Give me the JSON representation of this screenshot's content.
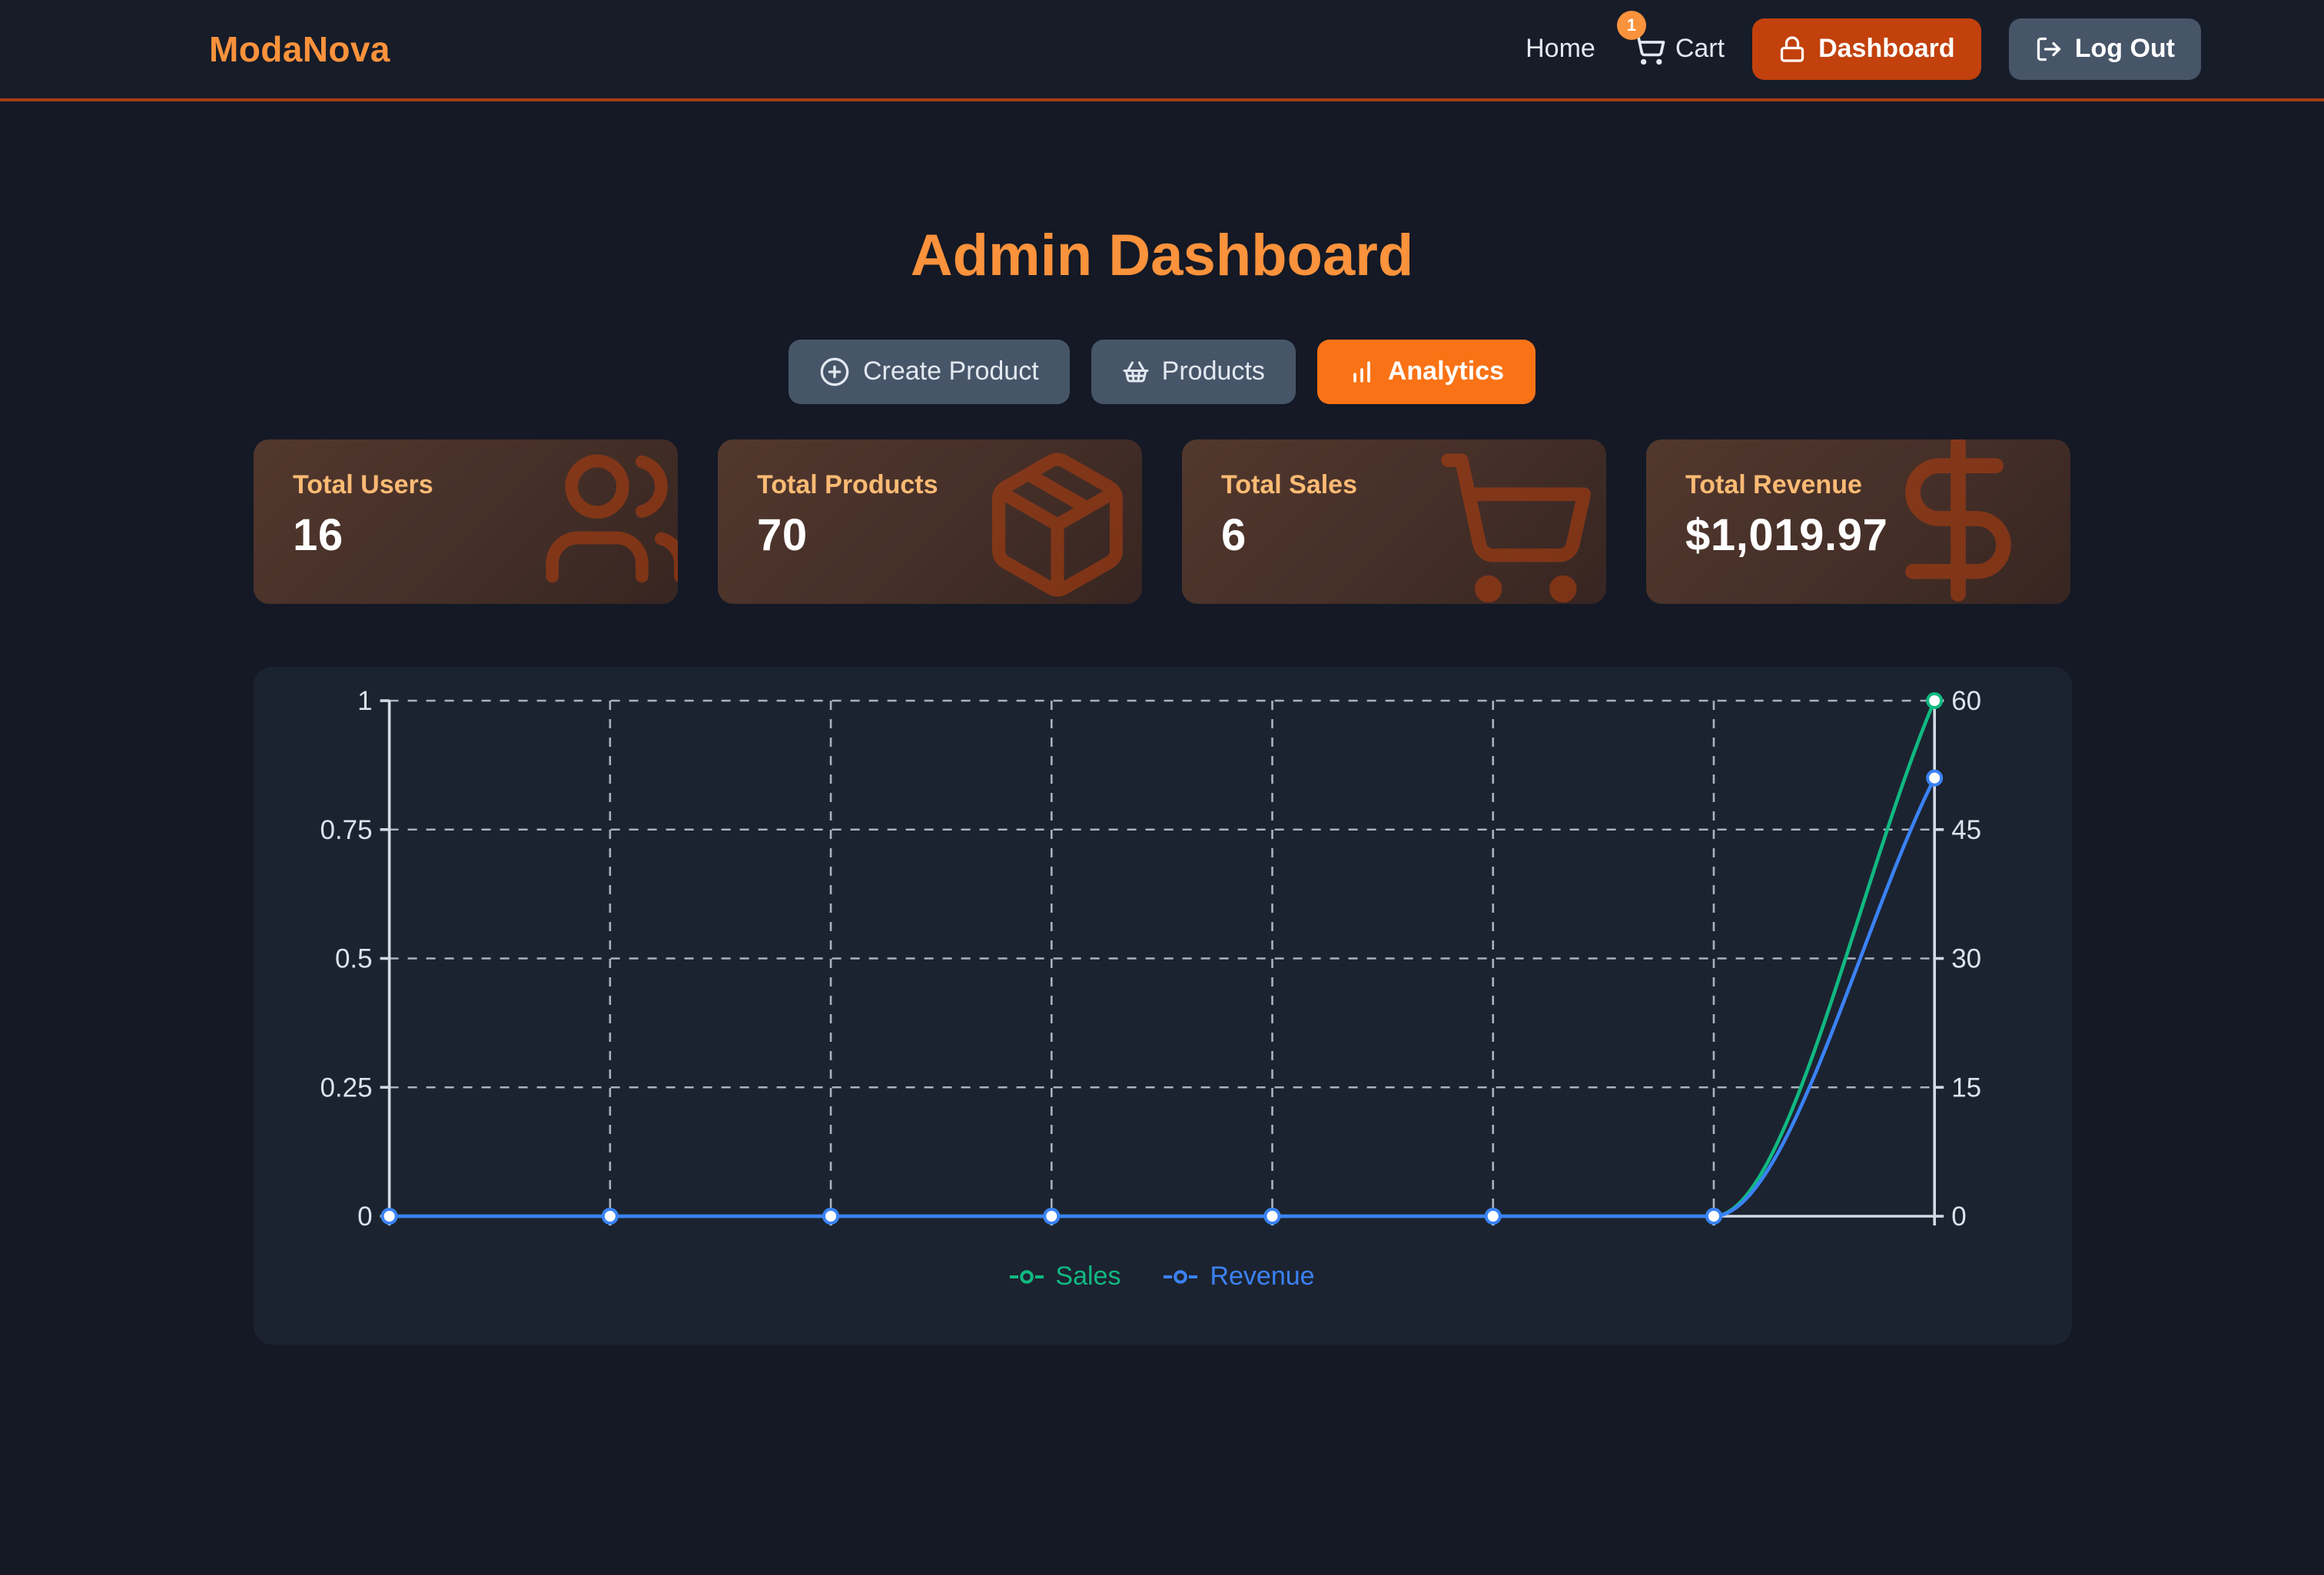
{
  "brand": "ModaNova",
  "nav": {
    "home_label": "Home",
    "cart_label": "Cart",
    "cart_badge": "1",
    "dashboard_label": "Dashboard",
    "logout_label": "Log Out"
  },
  "page_title": "Admin Dashboard",
  "actions": {
    "create_product_label": "Create Product",
    "products_label": "Products",
    "analytics_label": "Analytics"
  },
  "stats": [
    {
      "label": "Total Users",
      "value": "16",
      "icon": "users-icon"
    },
    {
      "label": "Total Products",
      "value": "70",
      "icon": "package-icon"
    },
    {
      "label": "Total Sales",
      "value": "6",
      "icon": "cart-icon"
    },
    {
      "label": "Total Revenue",
      "value": "$1,019.97",
      "icon": "dollar-icon"
    }
  ],
  "colors": {
    "brand_orange": "#fb923c",
    "analytics_orange": "#f97316",
    "dashboard_button": "#c2410c",
    "slate_button": "#475569",
    "card_label_orange": "#fdba74",
    "sales_green": "#10b981",
    "revenue_blue": "#3b82f6",
    "grid_line": "#c3cbd8",
    "axis_line": "#d4dae4",
    "tick_text": "#dde3ed"
  },
  "chart_data": {
    "type": "line",
    "categories": [
      "",
      "",
      "",
      "",
      "",
      "",
      "",
      ""
    ],
    "series": [
      {
        "name": "Sales",
        "axis": "left",
        "color": "#10b981",
        "values": [
          0,
          0,
          0,
          0,
          0,
          0,
          0,
          1
        ]
      },
      {
        "name": "Revenue",
        "axis": "right",
        "color": "#3b82f6",
        "values": [
          0,
          0,
          0,
          0,
          0,
          0,
          0,
          51
        ]
      }
    ],
    "left_axis": {
      "range": [
        0,
        1
      ],
      "ticks": [
        0,
        0.25,
        0.5,
        0.75,
        1
      ]
    },
    "right_axis": {
      "range": [
        0,
        60
      ],
      "ticks": [
        0,
        15,
        30,
        45,
        60
      ]
    },
    "x_axis_labels_visible": false,
    "grid": "dashed",
    "line_style": "smooth-monotone",
    "point_style": "white-fill-colored-ring",
    "legend_position": "bottom"
  }
}
